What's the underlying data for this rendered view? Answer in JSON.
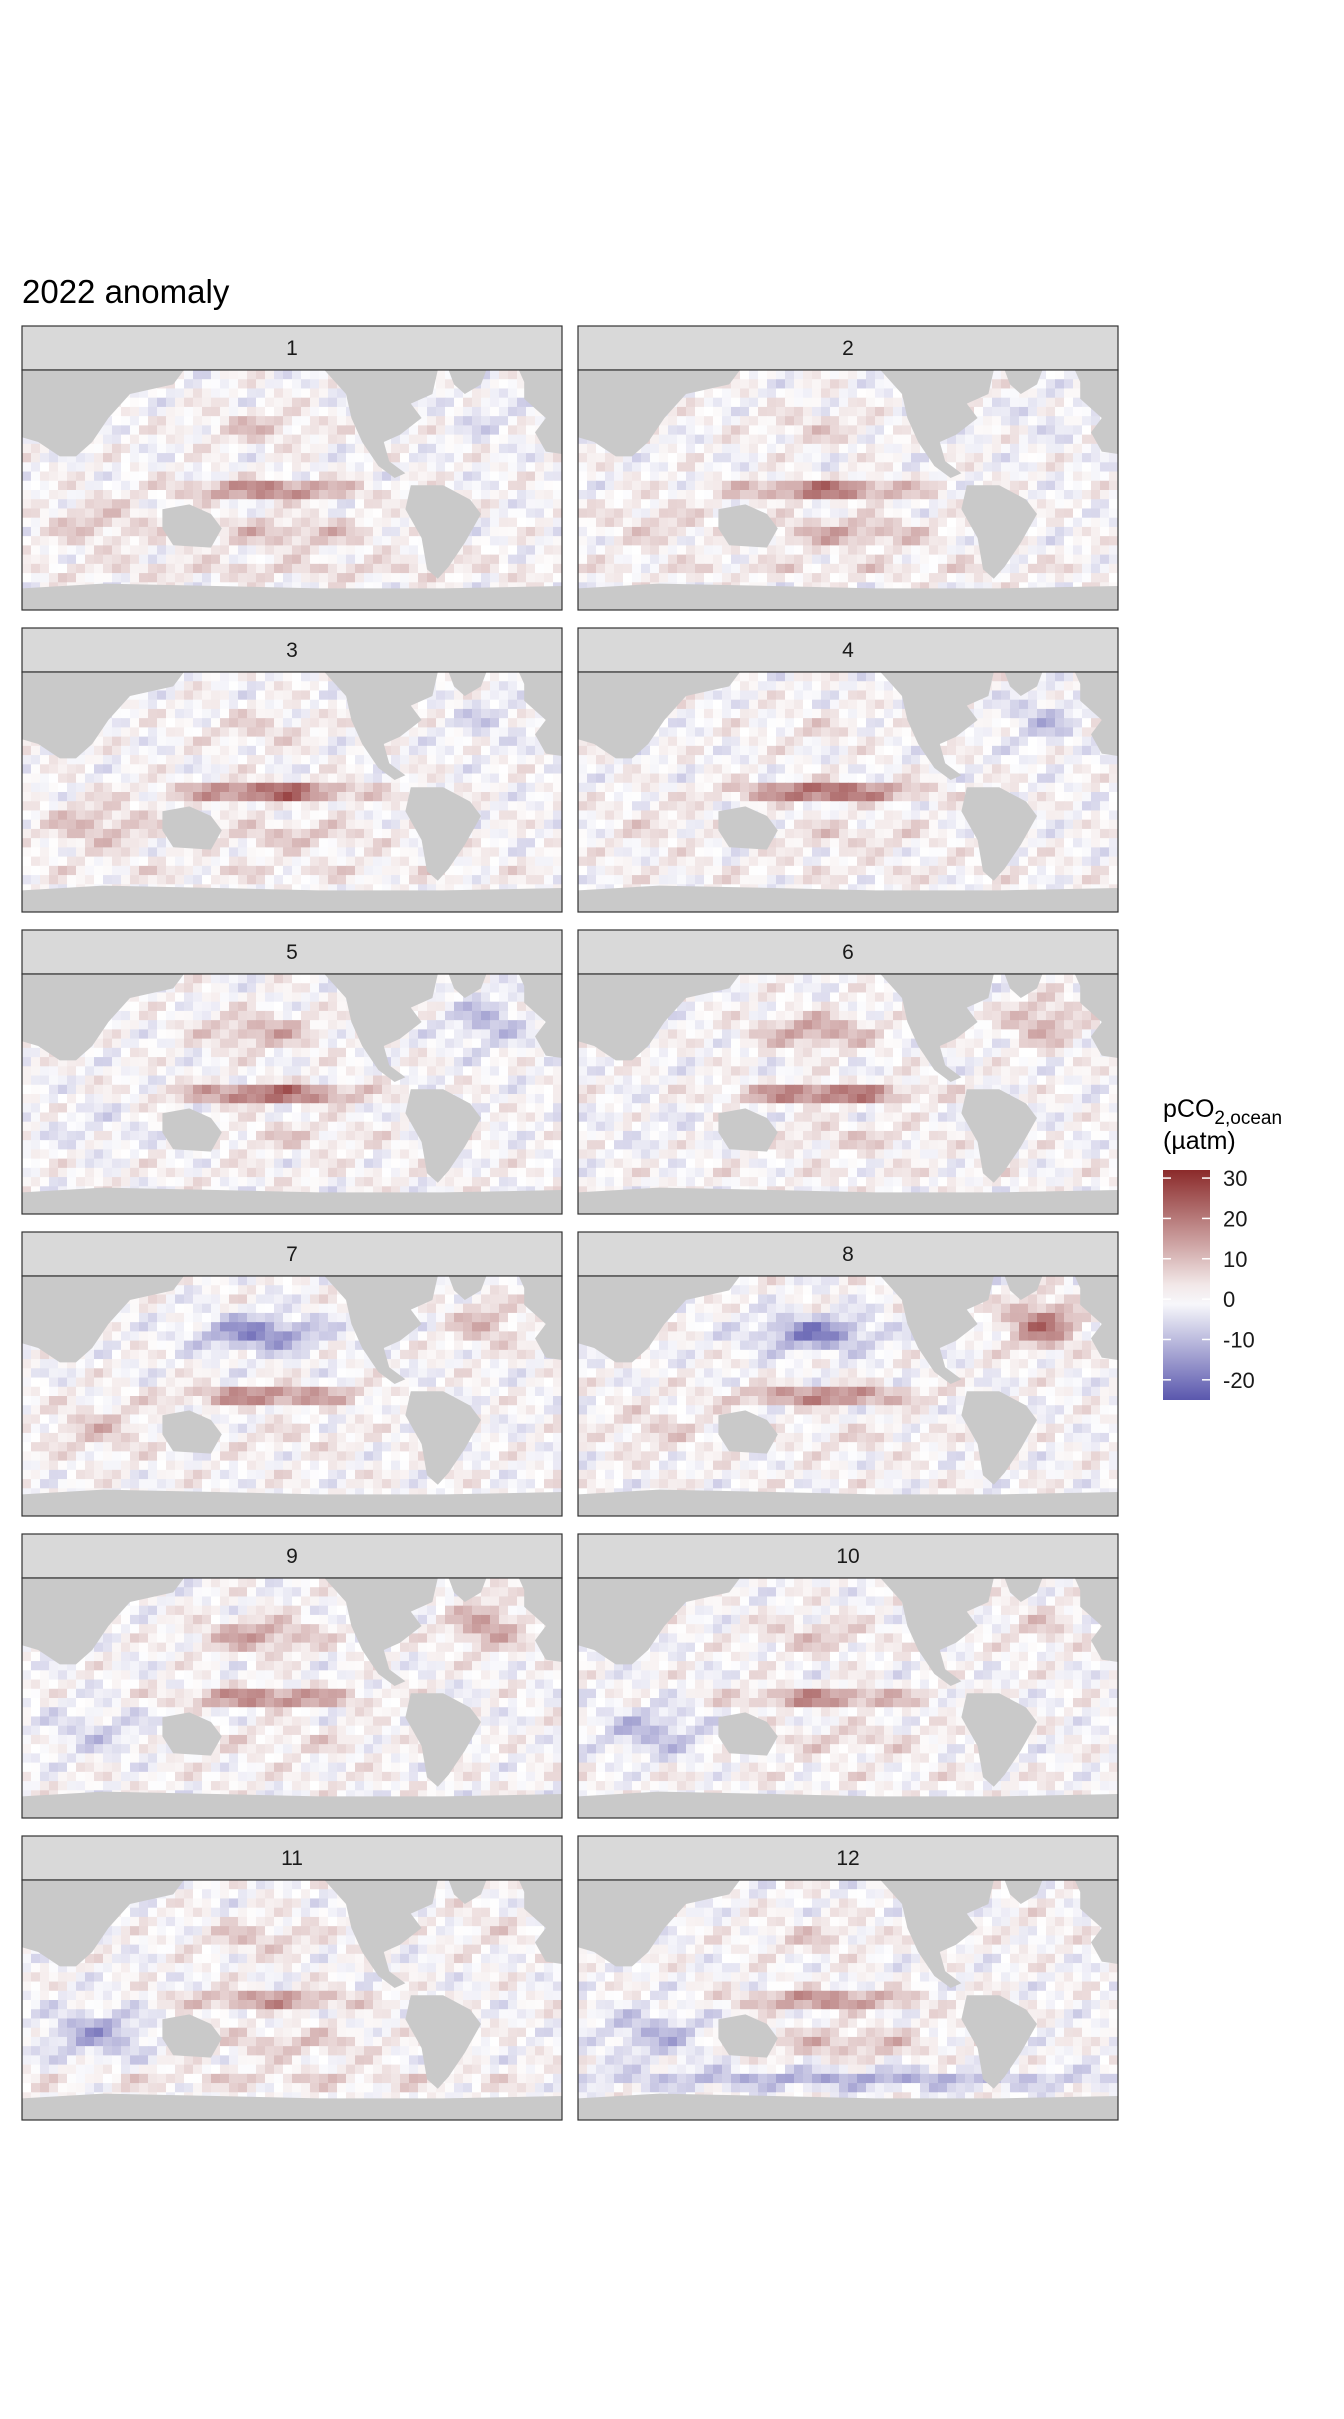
{
  "chart_data": {
    "type": "heatmap",
    "title": "2022 anomaly",
    "panel_labels": [
      "1",
      "2",
      "3",
      "4",
      "5",
      "6",
      "7",
      "8",
      "9",
      "10",
      "11",
      "12"
    ],
    "layout_grid": {
      "rows": 6,
      "cols": 2
    },
    "legend": {
      "title_main": "pCO",
      "title_sub": "2,ocean",
      "title_unit": "(µatm)",
      "ticks": [
        "30",
        "20",
        "10",
        "0",
        "-10",
        "-20"
      ],
      "tick_values": [
        30,
        20,
        10,
        0,
        -10,
        -20
      ],
      "range": [
        -25,
        32
      ],
      "colors": {
        "high": "#8b2a2a",
        "mid": "#ffffff",
        "low": "#5a57ad"
      }
    },
    "colors": {
      "land": "#c9c9c9",
      "strip": "#d9d9d9",
      "panel_border": "#333333",
      "ocean_zero": "#ffffff"
    },
    "series": [
      {
        "panel": "1",
        "equatorial_pacific": 22,
        "north_pacific": 8,
        "south_pacific": 10,
        "north_atlantic": -4,
        "southern_ocean": 6,
        "indian": 8
      },
      {
        "panel": "2",
        "equatorial_pacific": 24,
        "north_pacific": 6,
        "south_pacific": 12,
        "north_atlantic": -3,
        "southern_ocean": 5,
        "indian": 6
      },
      {
        "panel": "3",
        "equatorial_pacific": 28,
        "north_pacific": 6,
        "south_pacific": 8,
        "north_atlantic": -5,
        "southern_ocean": 4,
        "indian": 10
      },
      {
        "panel": "4",
        "equatorial_pacific": 28,
        "north_pacific": 4,
        "south_pacific": 6,
        "north_atlantic": -8,
        "southern_ocean": 3,
        "indian": 4
      },
      {
        "panel": "5",
        "equatorial_pacific": 27,
        "north_pacific": 12,
        "south_pacific": 6,
        "north_atlantic": -10,
        "southern_ocean": 2,
        "indian": -3
      },
      {
        "panel": "6",
        "equatorial_pacific": 26,
        "north_pacific": 14,
        "south_pacific": 6,
        "north_atlantic": 12,
        "southern_ocean": 2,
        "indian": -2
      },
      {
        "panel": "7",
        "equatorial_pacific": 22,
        "north_pacific": -18,
        "south_pacific": 4,
        "north_atlantic": 10,
        "southern_ocean": 1,
        "indian": 8
      },
      {
        "panel": "8",
        "equatorial_pacific": 22,
        "north_pacific": -18,
        "south_pacific": 4,
        "north_atlantic": 20,
        "southern_ocean": 1,
        "indian": 6
      },
      {
        "panel": "9",
        "equatorial_pacific": 22,
        "north_pacific": 14,
        "south_pacific": 5,
        "north_atlantic": 14,
        "southern_ocean": 2,
        "indian": -6
      },
      {
        "panel": "10",
        "equatorial_pacific": 20,
        "north_pacific": 8,
        "south_pacific": 6,
        "north_atlantic": 6,
        "southern_ocean": 2,
        "indian": -10
      },
      {
        "panel": "11",
        "equatorial_pacific": 18,
        "north_pacific": 8,
        "south_pacific": 8,
        "north_atlantic": 4,
        "southern_ocean": 6,
        "indian": -12
      },
      {
        "panel": "12",
        "equatorial_pacific": 20,
        "north_pacific": 6,
        "south_pacific": 10,
        "north_atlantic": 2,
        "southern_ocean": -12,
        "indian": -10
      }
    ]
  }
}
